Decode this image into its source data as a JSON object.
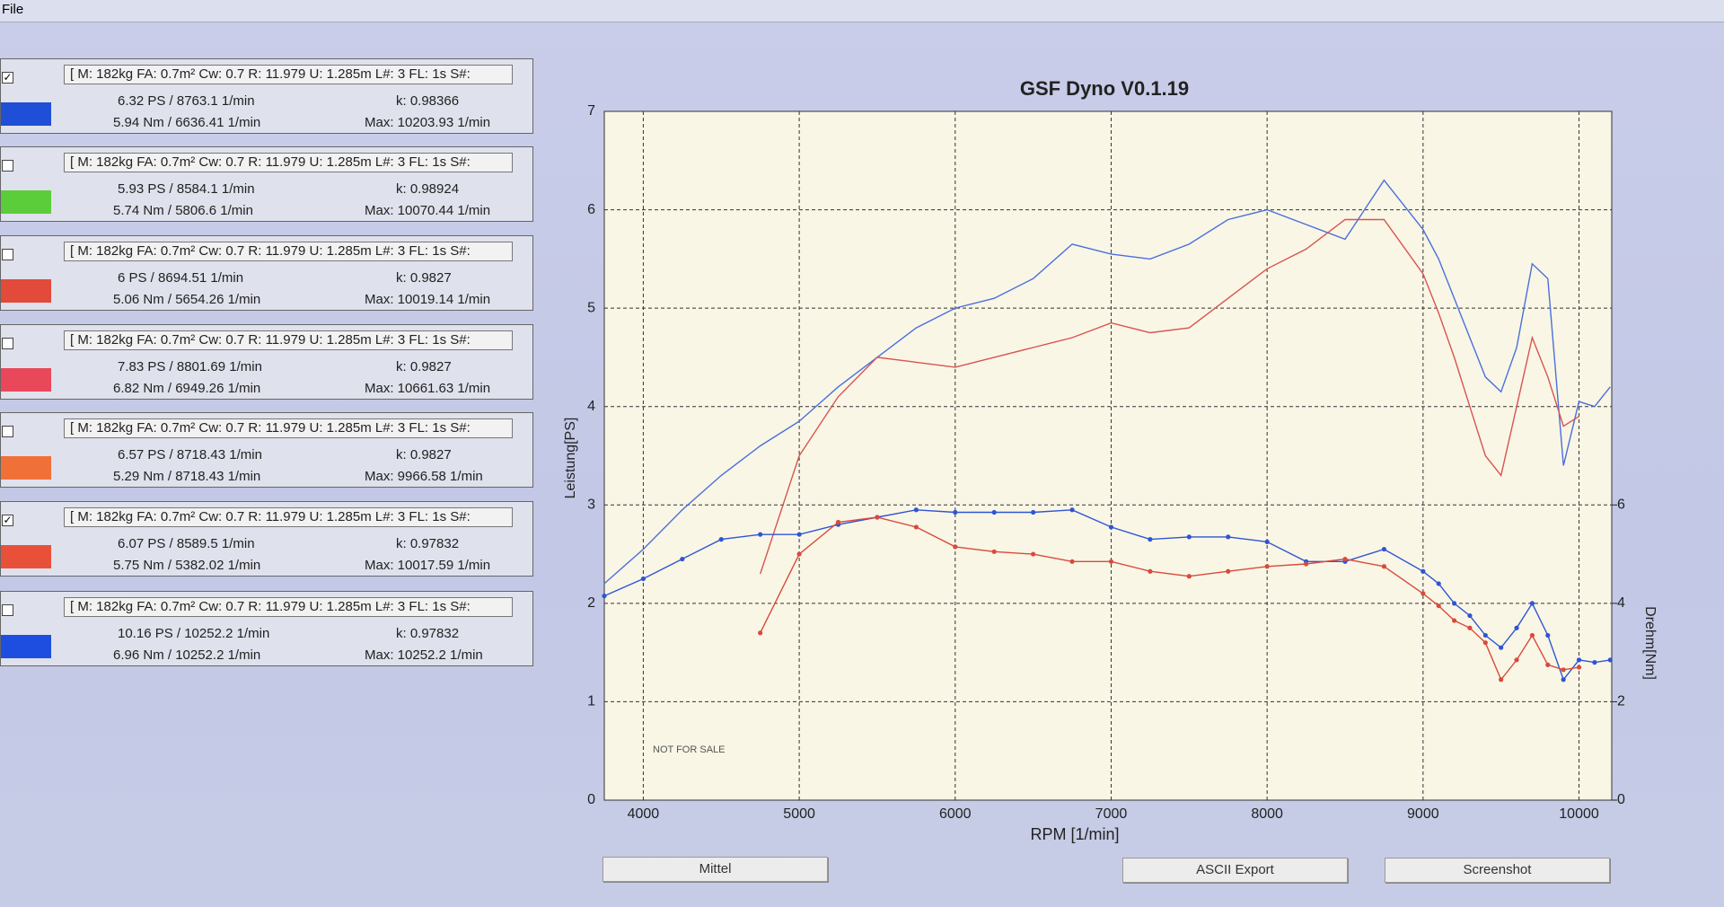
{
  "menu": {
    "file": "File"
  },
  "runs": [
    {
      "header": "[ M: 182kg  FA: 0.7m²  Cw: 0.7  R: 11.979  U: 1.285m  L#: 3 FL: 1s  S#:",
      "power": "6.32 PS / 8763.1 1/min",
      "k": "k: 0.98366",
      "torque": "5.94 Nm / 6636.41 1/min",
      "max": "Max: 10203.93 1/min",
      "checked": true,
      "color": "#1f4fd6"
    },
    {
      "header": "[ M: 182kg  FA: 0.7m²  Cw: 0.7  R: 11.979  U: 1.285m  L#: 3 FL: 1s  S#:",
      "power": "5.93 PS / 8584.1 1/min",
      "k": "k: 0.98924",
      "torque": "5.74 Nm / 5806.6 1/min",
      "max": "Max: 10070.44 1/min",
      "checked": false,
      "color": "#5ccd3a"
    },
    {
      "header": "[ M: 182kg  FA: 0.7m²  Cw: 0.7  R: 11.979  U: 1.285m  L#: 3 FL: 1s  S#:",
      "power": "6 PS / 8694.51 1/min",
      "k": "k: 0.9827",
      "torque": "5.06 Nm / 5654.26 1/min",
      "max": "Max: 10019.14 1/min",
      "checked": false,
      "color": "#e24a3a"
    },
    {
      "header": "[ M: 182kg  FA: 0.7m²  Cw: 0.7  R: 11.979  U: 1.285m  L#: 3 FL: 1s  S#:",
      "power": "7.83 PS / 8801.69 1/min",
      "k": "k: 0.9827",
      "torque": "6.82 Nm / 6949.26 1/min",
      "max": "Max: 10661.63 1/min",
      "checked": false,
      "color": "#e8485a"
    },
    {
      "header": "[ M: 182kg  FA: 0.7m²  Cw: 0.7  R: 11.979  U: 1.285m  L#: 3 FL: 1s  S#:",
      "power": "6.57 PS / 8718.43 1/min",
      "k": "k: 0.9827",
      "torque": "5.29 Nm / 8718.43 1/min",
      "max": "Max: 9966.58 1/min",
      "checked": false,
      "color": "#f07038"
    },
    {
      "header": "[ M: 182kg  FA: 0.7m²  Cw: 0.7  R: 11.979  U: 1.285m  L#: 3 FL: 1s  S#:",
      "power": "6.07 PS / 8589.5 1/min",
      "k": "k: 0.97832",
      "torque": "5.75 Nm / 5382.02 1/min",
      "max": "Max: 10017.59 1/min",
      "checked": true,
      "color": "#e8503a"
    },
    {
      "header": "[ M: 182kg  FA: 0.7m²  Cw: 0.7  R: 11.979  U: 1.285m  L#: 3 FL: 1s  S#:",
      "power": "10.16 PS / 10252.2 1/min",
      "k": "k: 0.97832",
      "torque": "6.96 Nm / 10252.2 1/min",
      "max": "Max: 10252.2 1/min",
      "checked": false,
      "color": "#1e4ee0"
    }
  ],
  "buttons": {
    "mittel": "Mittel",
    "ascii": "ASCII Export",
    "screenshot": "Screenshot"
  },
  "chart_data": {
    "type": "line",
    "title": "GSF Dyno V0.1.19",
    "x_label": "RPM [1/min]",
    "y_label": "Leistung[PS]",
    "y2_label": "Drehm[Nm]",
    "annotation": "NOT FOR SALE",
    "grid": true,
    "xlim": [
      3750,
      10210
    ],
    "ylim": [
      0,
      7
    ],
    "y2lim": [
      0,
      14
    ],
    "xticks": [
      4000,
      5000,
      6000,
      7000,
      8000,
      9000,
      10000
    ],
    "yticks": [
      0,
      1,
      2,
      3,
      4,
      5,
      6,
      7
    ],
    "y2ticks": [
      0,
      2,
      4,
      6
    ],
    "x": [
      3750,
      4000,
      4250,
      4500,
      4750,
      5000,
      5250,
      5500,
      5750,
      6000,
      6250,
      6500,
      6750,
      7000,
      7250,
      7500,
      7750,
      8000,
      8250,
      8500,
      8750,
      9000,
      9100,
      9200,
      9300,
      9400,
      9500,
      9600,
      9700,
      9800,
      9900,
      10000,
      10100,
      10200
    ],
    "series": [
      {
        "color": "#4a6fdc",
        "axis": "y",
        "markers": false,
        "values": [
          2.2,
          2.55,
          2.95,
          3.3,
          3.6,
          3.85,
          4.2,
          4.5,
          4.8,
          5.0,
          5.1,
          5.3,
          5.65,
          5.55,
          5.5,
          5.65,
          5.9,
          6.0,
          5.85,
          5.7,
          6.3,
          5.8,
          5.5,
          5.1,
          4.7,
          4.3,
          4.15,
          4.6,
          5.45,
          5.3,
          3.4,
          4.05,
          4.0,
          4.2
        ]
      },
      {
        "color": "#d9534f",
        "axis": "y",
        "markers": false,
        "values": [
          null,
          null,
          null,
          null,
          2.3,
          3.5,
          4.1,
          4.5,
          4.45,
          4.4,
          4.5,
          4.6,
          4.7,
          4.85,
          4.75,
          4.8,
          5.1,
          5.4,
          5.6,
          5.9,
          5.9,
          5.35,
          4.95,
          4.5,
          4.0,
          3.5,
          3.3,
          4.0,
          4.7,
          4.3,
          3.8,
          3.9,
          null,
          null
        ]
      },
      {
        "color": "#2f55d4",
        "axis": "y2",
        "markers": true,
        "values": [
          4.15,
          4.5,
          4.9,
          5.3,
          5.4,
          5.4,
          5.6,
          5.75,
          5.9,
          5.85,
          5.85,
          5.85,
          5.9,
          5.55,
          5.3,
          5.35,
          5.35,
          5.25,
          4.85,
          4.85,
          5.1,
          4.65,
          4.4,
          4.0,
          3.75,
          3.35,
          3.1,
          3.5,
          4.0,
          3.35,
          2.45,
          2.85,
          2.8,
          2.85
        ]
      },
      {
        "color": "#d94a3c",
        "axis": "y2",
        "markers": true,
        "values": [
          null,
          null,
          null,
          null,
          3.4,
          5.0,
          5.65,
          5.75,
          5.55,
          5.15,
          5.05,
          5.0,
          4.85,
          4.85,
          4.65,
          4.55,
          4.65,
          4.75,
          4.8,
          4.9,
          4.75,
          4.2,
          3.95,
          3.65,
          3.5,
          3.2,
          2.45,
          2.85,
          3.35,
          2.75,
          2.65,
          2.7,
          null,
          null
        ]
      }
    ]
  }
}
